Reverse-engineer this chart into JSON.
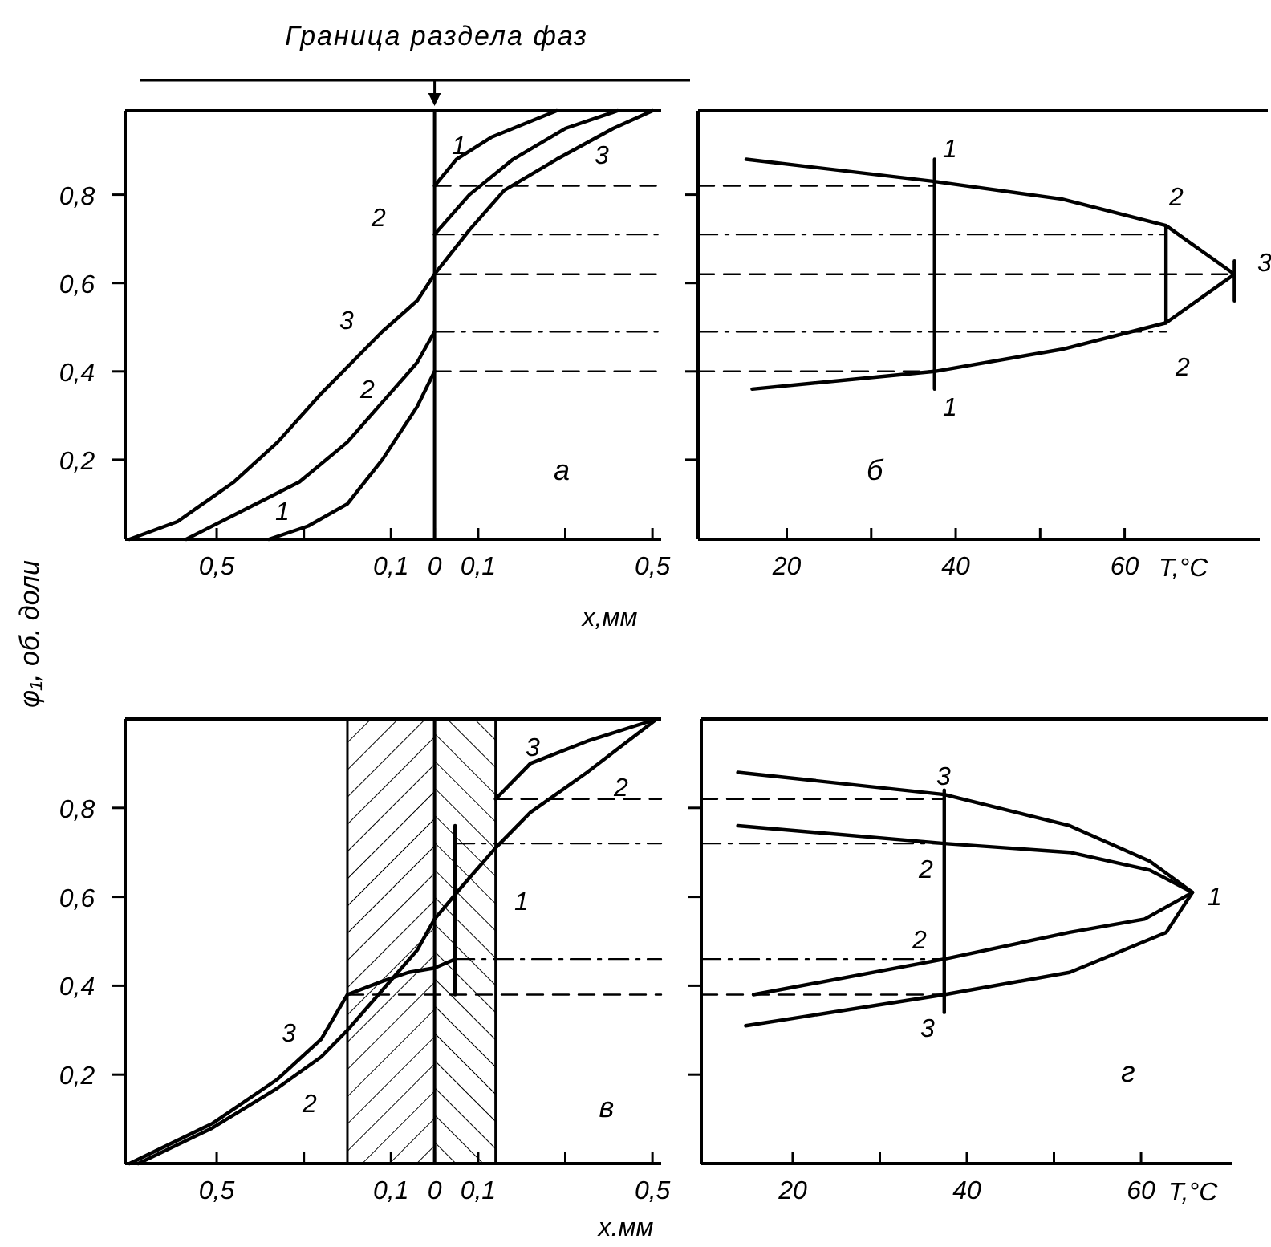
{
  "chart_data": [
    {
      "type": "line",
      "title": "Граница раздела фаз",
      "xlabel": "x,мм",
      "ylabel": "φ₁, об. доли",
      "xlim": [
        -0.71,
        0.52
      ],
      "ylim": [
        0.02,
        0.99
      ],
      "xticks": [
        {
          "value": -0.5,
          "label": "0,5"
        },
        {
          "value": -0.3,
          "label": null
        },
        {
          "value": -0.1,
          "label": "0,1"
        },
        {
          "value": 0,
          "label": "0"
        },
        {
          "value": 0.1,
          "label": "0,1"
        },
        {
          "value": 0.3,
          "label": null
        },
        {
          "value": 0.5,
          "label": "0,5"
        }
      ],
      "yticks": [
        {
          "value": 0.2,
          "label": "0,2"
        },
        {
          "value": 0.4,
          "label": "0,4"
        },
        {
          "value": 0.6,
          "label": "0,6"
        },
        {
          "value": 0.8,
          "label": "0,8"
        }
      ],
      "ref_lines": [
        {
          "axis": "x",
          "value": 0
        }
      ],
      "series": [
        {
          "color": "#000000",
          "x": [
            -0.7,
            -0.59,
            -0.46,
            -0.36,
            -0.26,
            -0.19,
            -0.12,
            -0.04,
            0,
            0.08,
            0.16,
            0.28,
            0.41,
            0.5
          ],
          "values": [
            0.02,
            0.06,
            0.15,
            0.24,
            0.35,
            0.42,
            0.49,
            0.56,
            0.62,
            0.72,
            0.81,
            0.88,
            0.95,
            0.99
          ]
        },
        {
          "color": "#000000",
          "x": [
            -0.57,
            -0.45,
            -0.31,
            -0.2,
            -0.12,
            -0.04,
            0
          ],
          "values": [
            0.02,
            0.08,
            0.15,
            0.24,
            0.33,
            0.42,
            0.49
          ]
        },
        {
          "color": "#000000",
          "x": [
            0,
            0.08,
            0.18,
            0.3,
            0.42
          ],
          "values": [
            0.71,
            0.8,
            0.88,
            0.95,
            0.99
          ]
        },
        {
          "color": "#000000",
          "x": [
            -0.38,
            -0.29,
            -0.2,
            -0.12,
            -0.04,
            0
          ],
          "values": [
            0.02,
            0.05,
            0.1,
            0.2,
            0.32,
            0.4
          ]
        },
        {
          "color": "#000000",
          "x": [
            0,
            0.05,
            0.13,
            0.28
          ],
          "values": [
            0.82,
            0.88,
            0.93,
            0.99
          ]
        },
        {
          "color": "#000000",
          "line_style": "dashed",
          "x": [
            0,
            0.52
          ],
          "values": [
            0.82,
            0.82
          ]
        },
        {
          "color": "#000000",
          "line_style": "dashdot",
          "x": [
            0,
            0.52
          ],
          "values": [
            0.71,
            0.71
          ]
        },
        {
          "color": "#000000",
          "line_style": "dashed",
          "x": [
            0,
            0.52
          ],
          "values": [
            0.62,
            0.62
          ]
        },
        {
          "color": "#000000",
          "line_style": "dashdot",
          "x": [
            0,
            0.52
          ],
          "values": [
            0.49,
            0.49
          ]
        },
        {
          "color": "#000000",
          "line_style": "dashed",
          "x": [
            0,
            0.52
          ],
          "values": [
            0.4,
            0.4
          ]
        }
      ],
      "annotations": [
        "1",
        "2",
        "3",
        "3",
        "2",
        "1",
        "а"
      ]
    },
    {
      "type": "line",
      "xlabel": "T,°C",
      "xlim": [
        9.5,
        76
      ],
      "ylim": [
        0.02,
        0.99
      ],
      "tick_labels": "x",
      "xticks": [
        20,
        {
          "value": 30,
          "label": null
        },
        40,
        {
          "value": 50,
          "label": null
        },
        60
      ],
      "yticks": [
        0.2,
        0.4,
        0.6,
        0.8
      ],
      "series": [
        {
          "color": "#000000",
          "x": [
            15.2,
            37.5,
            52.6,
            64.9,
            73,
            64.9,
            52.6,
            37.5,
            15.9
          ],
          "values": [
            0.88,
            0.83,
            0.79,
            0.73,
            0.62,
            0.51,
            0.45,
            0.4,
            0.36
          ]
        },
        {
          "color": "#000000",
          "x": [
            37.5,
            37.5
          ],
          "values": [
            0.36,
            0.88
          ]
        },
        {
          "color": "#000000",
          "x": [
            64.9,
            64.9
          ],
          "values": [
            0.51,
            0.73
          ]
        },
        {
          "color": "#000000",
          "x": [
            73,
            73
          ],
          "values": [
            0.56,
            0.65
          ]
        },
        {
          "color": "#000000",
          "line_style": "dashed",
          "x": [
            9.5,
            37.5
          ],
          "values": [
            0.82,
            0.82
          ]
        },
        {
          "color": "#000000",
          "line_style": "dashdot",
          "x": [
            9.5,
            64.9
          ],
          "values": [
            0.71,
            0.71
          ]
        },
        {
          "color": "#000000",
          "line_style": "dashed",
          "x": [
            9.5,
            73
          ],
          "values": [
            0.62,
            0.62
          ]
        },
        {
          "color": "#000000",
          "line_style": "dashdot",
          "x": [
            9.5,
            64.9
          ],
          "values": [
            0.49,
            0.49
          ]
        },
        {
          "color": "#000000",
          "line_style": "dashed",
          "x": [
            9.5,
            37.5
          ],
          "values": [
            0.4,
            0.4
          ]
        }
      ],
      "annotations": [
        "1",
        "1",
        "2",
        "2",
        "3",
        "б"
      ]
    },
    {
      "type": "line",
      "xlabel": "x.мм",
      "xlim": [
        -0.71,
        0.52
      ],
      "ylim": [
        0,
        1.0
      ],
      "xticks": [
        {
          "value": -0.5,
          "label": "0,5"
        },
        {
          "value": -0.3,
          "label": null
        },
        {
          "value": -0.1,
          "label": "0,1"
        },
        {
          "value": 0,
          "label": "0"
        },
        {
          "value": 0.1,
          "label": "0,1"
        },
        {
          "value": 0.3,
          "label": null
        },
        {
          "value": 0.5,
          "label": "0,5"
        }
      ],
      "yticks": [
        {
          "value": 0.2,
          "label": "0,2"
        },
        {
          "value": 0.4,
          "label": "0,4"
        },
        {
          "value": 0.6,
          "label": "0,6"
        },
        {
          "value": 0.8,
          "label": "0,8"
        }
      ],
      "ref_lines": [
        {
          "axis": "x",
          "value": 0
        }
      ],
      "bands": [
        {
          "axis": "x",
          "from": -0.2,
          "to": 0
        },
        {
          "axis": "x",
          "from": 0,
          "to": 0.14
        }
      ],
      "series": [
        {
          "color": "#000000",
          "x": [
            -0.7,
            -0.51,
            -0.36,
            -0.26,
            -0.2,
            -0.12,
            -0.06,
            0,
            0.047
          ],
          "values": [
            0,
            0.09,
            0.19,
            0.28,
            0.38,
            0.41,
            0.43,
            0.44,
            0.46
          ]
        },
        {
          "color": "#000000",
          "x": [
            0.14,
            0.22,
            0.35,
            0.51
          ],
          "values": [
            0.82,
            0.9,
            0.95,
            1.0
          ]
        },
        {
          "color": "#000000",
          "x": [
            -0.68,
            -0.51,
            -0.36,
            -0.26,
            -0.2,
            -0.12,
            -0.04,
            0,
            0.06,
            0.14,
            0.22,
            0.35,
            0.51
          ],
          "values": [
            0,
            0.08,
            0.17,
            0.24,
            0.3,
            0.39,
            0.48,
            0.55,
            0.62,
            0.71,
            0.79,
            0.88,
            1.0
          ]
        },
        {
          "color": "#000000",
          "x": [
            0.047,
            0.047
          ],
          "values": [
            0.38,
            0.76
          ]
        },
        {
          "color": "#000000",
          "line_style": "dashed",
          "x": [
            0.14,
            0.52
          ],
          "values": [
            0.82,
            0.82
          ]
        },
        {
          "color": "#000000",
          "line_style": "dashdot",
          "x": [
            0.047,
            0.52
          ],
          "values": [
            0.72,
            0.72
          ]
        },
        {
          "color": "#000000",
          "line_style": "dashdot",
          "x": [
            0.047,
            0.52
          ],
          "values": [
            0.46,
            0.46
          ]
        },
        {
          "color": "#000000",
          "line_style": "dashed",
          "x": [
            -0.2,
            0.52
          ],
          "values": [
            0.38,
            0.38
          ]
        }
      ],
      "annotations": [
        "3",
        "2",
        "3",
        "2",
        "1",
        "в"
      ]
    },
    {
      "type": "line",
      "xlabel": "T,°C",
      "xlim": [
        9.5,
        70.5
      ],
      "ylim": [
        0,
        1.0
      ],
      "tick_labels": "x",
      "xticks": [
        20,
        {
          "value": 30,
          "label": null
        },
        40,
        {
          "value": 50,
          "label": null
        },
        60
      ],
      "yticks": [
        0.2,
        0.4,
        0.6,
        0.8
      ],
      "series": [
        {
          "color": "#000000",
          "x": [
            13.7,
            37.4,
            51.8,
            61,
            65.9,
            62.9,
            51.8,
            37.4,
            14.6
          ],
          "values": [
            0.88,
            0.83,
            0.76,
            0.68,
            0.61,
            0.52,
            0.43,
            0.38,
            0.31
          ]
        },
        {
          "color": "#000000",
          "x": [
            13.7,
            37.4,
            51.8,
            61,
            65.9,
            60.4,
            51.8,
            37.4,
            15.5
          ],
          "values": [
            0.76,
            0.72,
            0.7,
            0.66,
            0.61,
            0.55,
            0.52,
            0.46,
            0.38
          ]
        },
        {
          "color": "#000000",
          "x": [
            37.4,
            37.4
          ],
          "values": [
            0.34,
            0.84
          ]
        },
        {
          "color": "#000000",
          "line_style": "dashed",
          "x": [
            9.5,
            37.4
          ],
          "values": [
            0.82,
            0.82
          ]
        },
        {
          "color": "#000000",
          "line_style": "dashdot",
          "x": [
            9.5,
            37.4
          ],
          "values": [
            0.72,
            0.72
          ]
        },
        {
          "color": "#000000",
          "line_style": "dashdot",
          "x": [
            9.5,
            37.4
          ],
          "values": [
            0.46,
            0.46
          ]
        },
        {
          "color": "#000000",
          "line_style": "dashed",
          "x": [
            9.5,
            37.4
          ],
          "values": [
            0.38,
            0.38
          ]
        }
      ],
      "annotations": [
        "3",
        "2",
        "2",
        "3",
        "1",
        "г"
      ]
    }
  ]
}
